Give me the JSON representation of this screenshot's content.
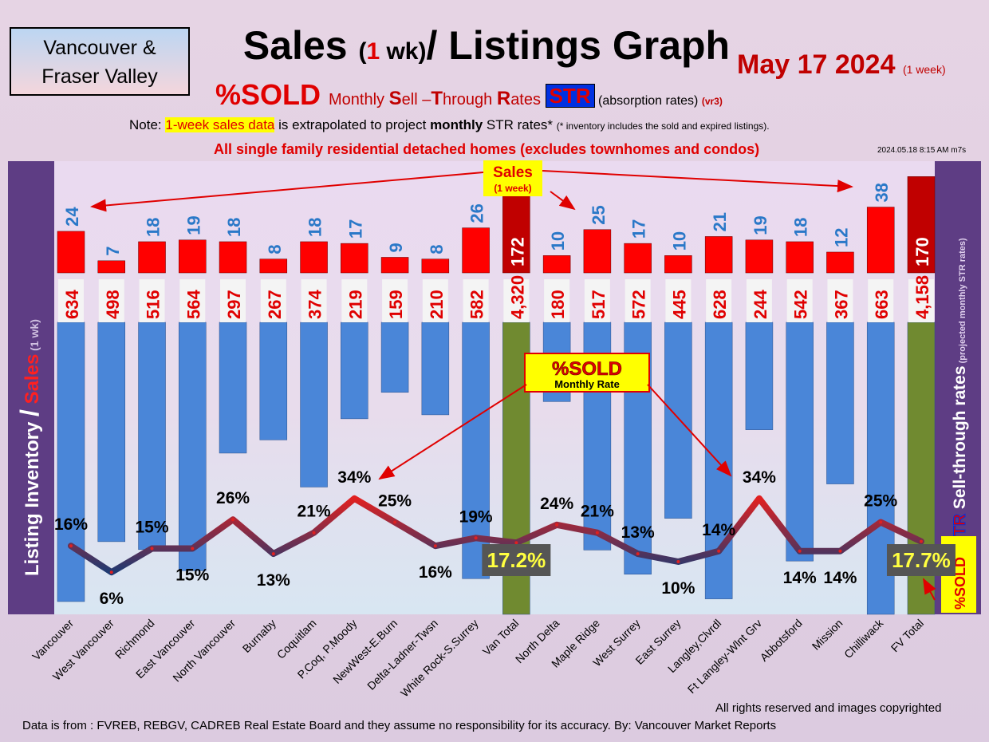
{
  "header": {
    "region_line1": "Vancouver &",
    "region_line2": "Fraser Valley",
    "title_a": "Sales ",
    "title_b": "(",
    "title_c": "1",
    "title_d": " wk)",
    "title_e": "/ Listings Graph",
    "date": "May 17  2024 ",
    "date_period": "(1 week)",
    "subtitle_sold": "%SOLD ",
    "subtitle_m1": "Monthly ",
    "subtitle_s": "S",
    "subtitle_m2": "ell –",
    "subtitle_t": "T",
    "subtitle_m3": "hrough ",
    "subtitle_r": "R",
    "subtitle_m4": "ates ",
    "str_label": "STR",
    "absorption": " (absorption rates) ",
    "version": "(vr3)",
    "note_a": "Note: ",
    "note_highlight": "1-week sales data",
    "note_b": " is extrapolated to project ",
    "note_bold": "monthly",
    "note_c": " STR rates* ",
    "note_small": "(* inventory includes the sold and expired listings).",
    "description": "All single family residential detached homes (excludes townhomes and condos)",
    "timestamp": "2024.05.18 8:15 AM m7s"
  },
  "side_labels": {
    "left_a": "Listing Inventory ",
    "left_slash": "/",
    "left_sales": " Sales",
    "left_small": " (1 wk)",
    "right_str": "STR",
    "right_text": " Sell-through rates",
    "right_small": " (projected monthly STR rates)",
    "sold_box": "%SOLD"
  },
  "callouts": {
    "sales": "Sales",
    "sales_sub": "(1 week)",
    "sold": "%SOLD",
    "sold_sub": "Monthly Rate"
  },
  "footer": {
    "copyright": "All rights reserved and  images copyrighted",
    "source": "Data is from : FVREB, REBGV, CADREB Real Estate Board and they assume no responsibility for its accuracy. By: Vancouver Market Reports"
  },
  "colors": {
    "sales_bar": "#ff0000",
    "total_sales_bar": "#c00000",
    "inventory_bar": "#4a86d8",
    "total_inventory_bar": "#708a30",
    "line": "#e02020",
    "line_low": "#203a70"
  },
  "chart_data": {
    "type": "bar",
    "categories": [
      "Vancouver",
      "West Vancouver",
      "Richmond",
      "East Vancouver",
      "North Vancouver",
      "Burnaby",
      "Coquitlam",
      "P.Coq, P.Moody",
      "NewWest-E.Burn",
      "Delta-Ladner-Twsn",
      "White Rock-S.Surrey",
      "Van Total",
      "North Delta",
      "Maple Ridge",
      "West Surrey",
      "East Surrey",
      "Langley,Clvrdl",
      "Ft Langley-Wlnt Grv",
      "Abbotsford",
      "Mission",
      "Chilliwack",
      "FV Total"
    ],
    "series": [
      {
        "name": "Sales",
        "values": [
          24,
          7,
          18,
          19,
          18,
          8,
          18,
          17,
          9,
          8,
          26,
          172,
          10,
          25,
          17,
          10,
          21,
          19,
          18,
          12,
          38,
          170
        ]
      },
      {
        "name": "Listing Inventory",
        "values": [
          634,
          498,
          516,
          564,
          297,
          267,
          374,
          219,
          159,
          210,
          582,
          4320,
          180,
          517,
          572,
          445,
          628,
          244,
          542,
          367,
          663,
          4158
        ]
      },
      {
        "name": "%SOLD",
        "values": [
          16,
          6,
          15,
          15,
          26,
          13,
          21,
          34,
          25,
          16,
          19,
          17.2,
          24,
          21,
          13,
          10,
          14,
          34,
          14,
          14,
          25,
          17.7
        ]
      }
    ],
    "sales_labels": [
      "24",
      "7",
      "18",
      "19",
      "18",
      "8",
      "18",
      "17",
      "9",
      "8",
      "26",
      "172",
      "10",
      "25",
      "17",
      "10",
      "21",
      "19",
      "18",
      "12",
      "38",
      "170"
    ],
    "inventory_labels": [
      "634",
      "498",
      "516",
      "564",
      "297",
      "267",
      "374",
      "219",
      "159",
      "210",
      "582",
      "4,320",
      "180",
      "517",
      "572",
      "445",
      "628",
      "244",
      "542",
      "367",
      "663",
      "4,158"
    ],
    "sold_labels": [
      "16%",
      "6%",
      "15%",
      "15%",
      "26%",
      "13%",
      "21%",
      "34%",
      "25%",
      "16%",
      "19%",
      "17.2%",
      "24%",
      "21%",
      "13%",
      "10%",
      "14%",
      "34%",
      "14%",
      "14%",
      "25%",
      "17.7%"
    ],
    "totals_index": [
      11,
      21
    ],
    "xlabel": "",
    "ylabel": ""
  }
}
